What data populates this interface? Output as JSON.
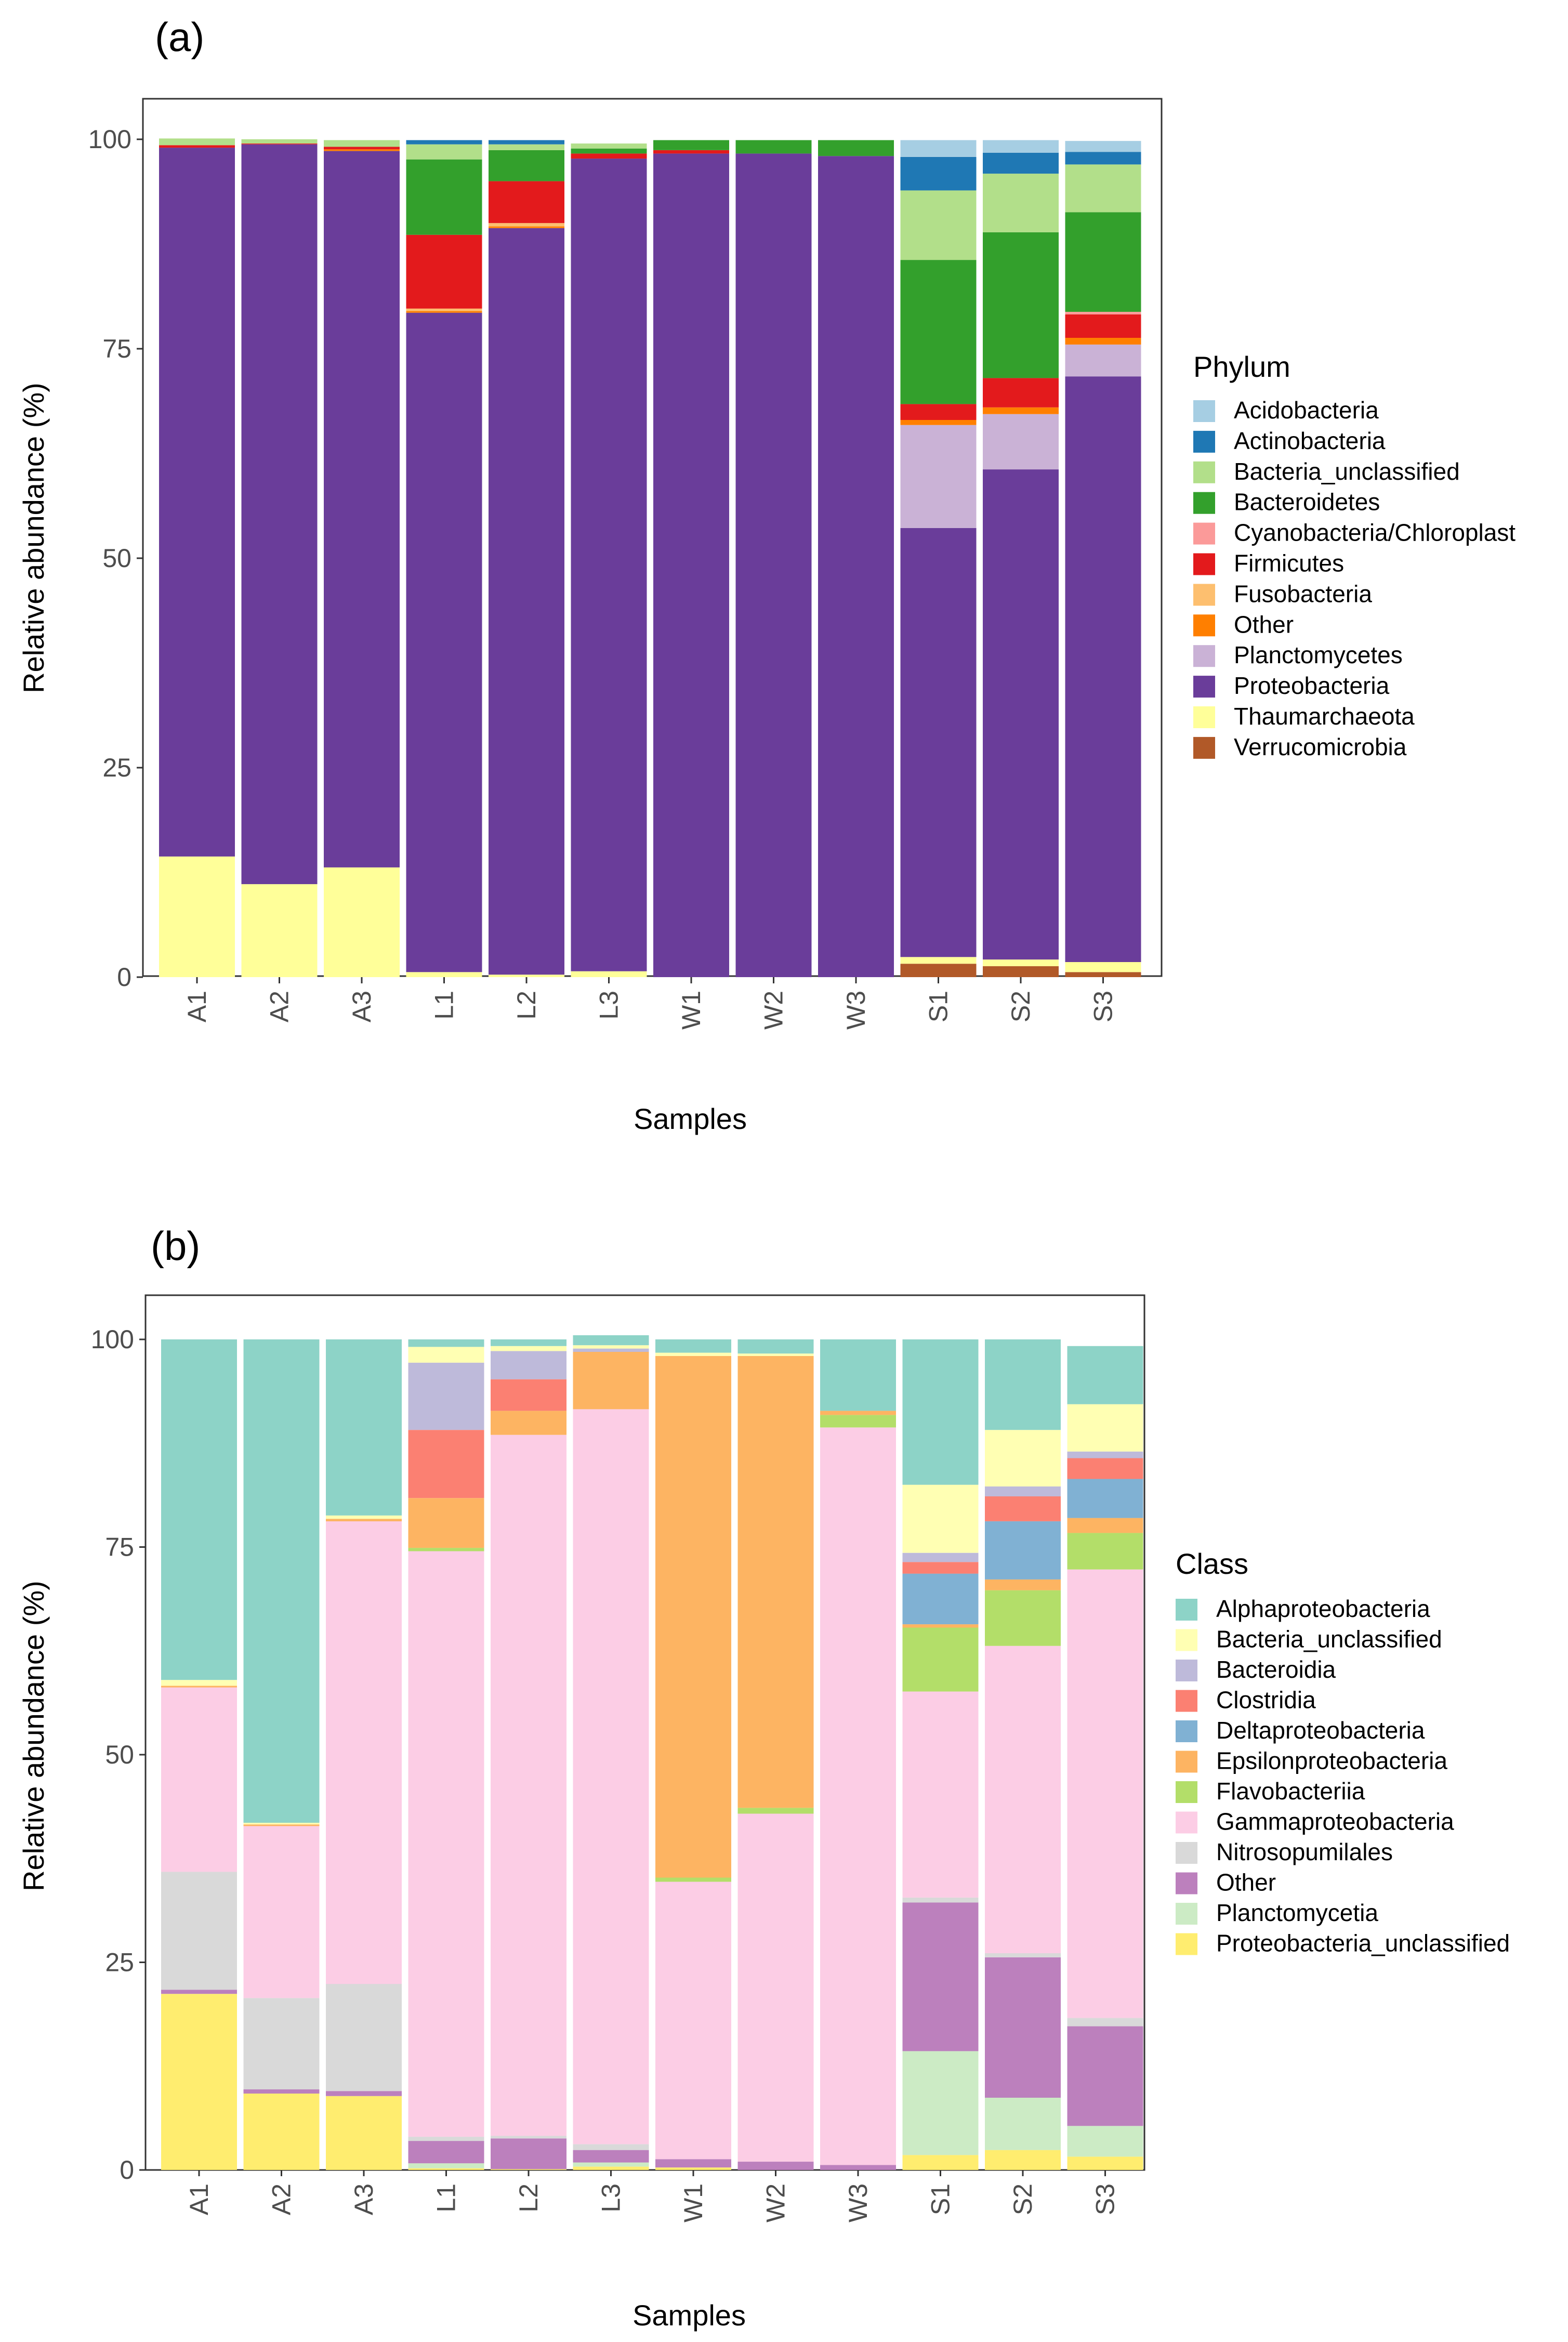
{
  "chart_data": [
    {
      "type": "bar",
      "stacked": true,
      "panel_label": "(a)",
      "xlabel": "Samples",
      "ylabel": "Relative abundance (%)",
      "ylim": [
        0,
        100
      ],
      "yticks": [
        "0",
        "25",
        "50",
        "75",
        "100"
      ],
      "legend_title": "Phylum",
      "legend_position": "right",
      "categories": [
        "A1",
        "A2",
        "A3",
        "L1",
        "L2",
        "L3",
        "W1",
        "W2",
        "W3",
        "S1",
        "S2",
        "S3"
      ],
      "series": [
        {
          "name": "Acidobacteria",
          "color": "#a6cee3",
          "values": [
            0,
            0,
            0,
            0,
            0,
            0,
            0,
            0,
            0,
            2.0,
            1.5,
            1.3
          ]
        },
        {
          "name": "Actinobacteria",
          "color": "#1f78b4",
          "values": [
            0,
            0,
            0,
            0.5,
            0.5,
            0,
            0,
            0,
            0,
            4.0,
            2.5,
            1.5
          ]
        },
        {
          "name": "Bacteria_unclassified",
          "color": "#b2df8a",
          "values": [
            0.8,
            0.5,
            0.8,
            1.8,
            0.7,
            0.6,
            0,
            0,
            0,
            8.3,
            7.0,
            5.7
          ]
        },
        {
          "name": "Bacteroidetes",
          "color": "#33a02c",
          "values": [
            0,
            0,
            0,
            9.0,
            3.7,
            0.6,
            1.2,
            1.6,
            1.9,
            17.2,
            17.4,
            11.9
          ]
        },
        {
          "name": "Cyanobacteria/Chloroplast",
          "color": "#fb9a99",
          "values": [
            0,
            0,
            0,
            0,
            0,
            0,
            0,
            0,
            0,
            0,
            0,
            0.3
          ]
        },
        {
          "name": "Firmicutes",
          "color": "#e31a1c",
          "values": [
            0.3,
            0.1,
            0.3,
            8.8,
            5.0,
            0.6,
            0.4,
            0,
            0,
            1.9,
            3.5,
            2.8
          ]
        },
        {
          "name": "Fusobacteria",
          "color": "#fdbf6f",
          "values": [
            0,
            0,
            0,
            0.3,
            0.4,
            0,
            0,
            0,
            0,
            0,
            0,
            0
          ]
        },
        {
          "name": "Other",
          "color": "#ff7f00",
          "values": [
            0,
            0,
            0.2,
            0.2,
            0.2,
            0,
            0,
            0,
            0,
            0.6,
            0.8,
            0.8
          ]
        },
        {
          "name": "Planctomycetes",
          "color": "#cab2d6",
          "values": [
            0,
            0,
            0,
            0,
            0,
            0,
            0,
            0,
            0,
            12.3,
            6.6,
            3.8
          ]
        },
        {
          "name": "Proteobacteria",
          "color": "#6a3d9a",
          "values": [
            84.6,
            88.3,
            85.5,
            78.7,
            89.1,
            97.0,
            98.3,
            98.3,
            98.0,
            51.2,
            58.5,
            69.9
          ]
        },
        {
          "name": "Thaumarchaeota",
          "color": "#ffff99",
          "values": [
            14.4,
            11.1,
            13.1,
            0.6,
            0.3,
            0.7,
            0,
            0,
            0,
            0.8,
            0.8,
            1.2
          ]
        },
        {
          "name": "Verrucomicrobia",
          "color": "#b15928",
          "values": [
            0,
            0,
            0,
            0,
            0,
            0,
            0,
            0,
            0,
            1.6,
            1.3,
            0.6
          ]
        }
      ]
    },
    {
      "type": "bar",
      "stacked": true,
      "panel_label": "(b)",
      "xlabel": "Samples",
      "ylabel": "Relative abundance (%)",
      "ylim": [
        0,
        100
      ],
      "yticks": [
        "0",
        "25",
        "50",
        "75",
        "100"
      ],
      "legend_title": "Class",
      "legend_position": "right",
      "categories": [
        "A1",
        "A2",
        "A3",
        "L1",
        "L2",
        "L3",
        "W1",
        "W2",
        "W3",
        "S1",
        "S2",
        "S3"
      ],
      "series": [
        {
          "name": "Alphaproteobacteria",
          "color": "#8dd3c7",
          "values": [
            41.0,
            58.2,
            21.2,
            0.9,
            0.8,
            1.2,
            1.6,
            1.7,
            8.6,
            17.5,
            10.9,
            7.0
          ]
        },
        {
          "name": "Bacteria_unclassified",
          "color": "#ffffb3",
          "values": [
            0.7,
            0.2,
            0.4,
            1.9,
            0.6,
            0.4,
            0.4,
            0.3,
            0,
            8.2,
            6.8,
            5.7
          ]
        },
        {
          "name": "Bacteroidia",
          "color": "#bebada",
          "values": [
            0,
            0,
            0,
            8.1,
            3.4,
            0.4,
            0,
            0,
            0,
            1.1,
            1.2,
            0.8
          ]
        },
        {
          "name": "Clostridia",
          "color": "#fb8072",
          "values": [
            0,
            0,
            0,
            8.2,
            3.8,
            0,
            0,
            0,
            0,
            1.4,
            3.0,
            2.5
          ]
        },
        {
          "name": "Deltaproteobacteria",
          "color": "#80b1d3",
          "values": [
            0,
            0,
            0,
            0,
            0,
            0,
            0,
            0,
            0,
            6.1,
            7.0,
            4.7
          ]
        },
        {
          "name": "Epsilonproteobacteria",
          "color": "#fdb462",
          "values": [
            0.2,
            0.2,
            0.3,
            6.0,
            2.9,
            6.9,
            62.8,
            54.4,
            0.5,
            0.4,
            1.3,
            1.8
          ]
        },
        {
          "name": "Flavobacteriia",
          "color": "#b3de69",
          "values": [
            0,
            0,
            0,
            0.4,
            0,
            0,
            0.5,
            0.7,
            1.5,
            7.7,
            6.7,
            4.4
          ]
        },
        {
          "name": "Gammaproteobacteria",
          "color": "#fccde5",
          "values": [
            22.2,
            20.7,
            55.7,
            70.5,
            84.4,
            88.5,
            33.4,
            41.9,
            88.8,
            24.8,
            37.0,
            54.0
          ]
        },
        {
          "name": "Nitrosopumilales",
          "color": "#d9d9d9",
          "values": [
            14.2,
            11.0,
            12.9,
            0.5,
            0.3,
            0.7,
            0,
            0,
            0,
            0.6,
            0.5,
            1.0
          ]
        },
        {
          "name": "Other",
          "color": "#bc80bd",
          "values": [
            0.5,
            0.5,
            0.6,
            2.7,
            3.7,
            1.5,
            1.0,
            1.0,
            0.6,
            17.9,
            16.9,
            12.0
          ]
        },
        {
          "name": "Planctomycetia",
          "color": "#ccebc5",
          "values": [
            0,
            0,
            0,
            0.6,
            0,
            0.5,
            0,
            0,
            0,
            12.5,
            6.3,
            3.7
          ]
        },
        {
          "name": "Proteobacteria_unclassified",
          "color": "#ffed6f",
          "values": [
            21.2,
            9.2,
            8.9,
            0.2,
            0.1,
            0.4,
            0.3,
            0,
            0,
            1.8,
            2.4,
            1.6
          ]
        }
      ]
    }
  ]
}
